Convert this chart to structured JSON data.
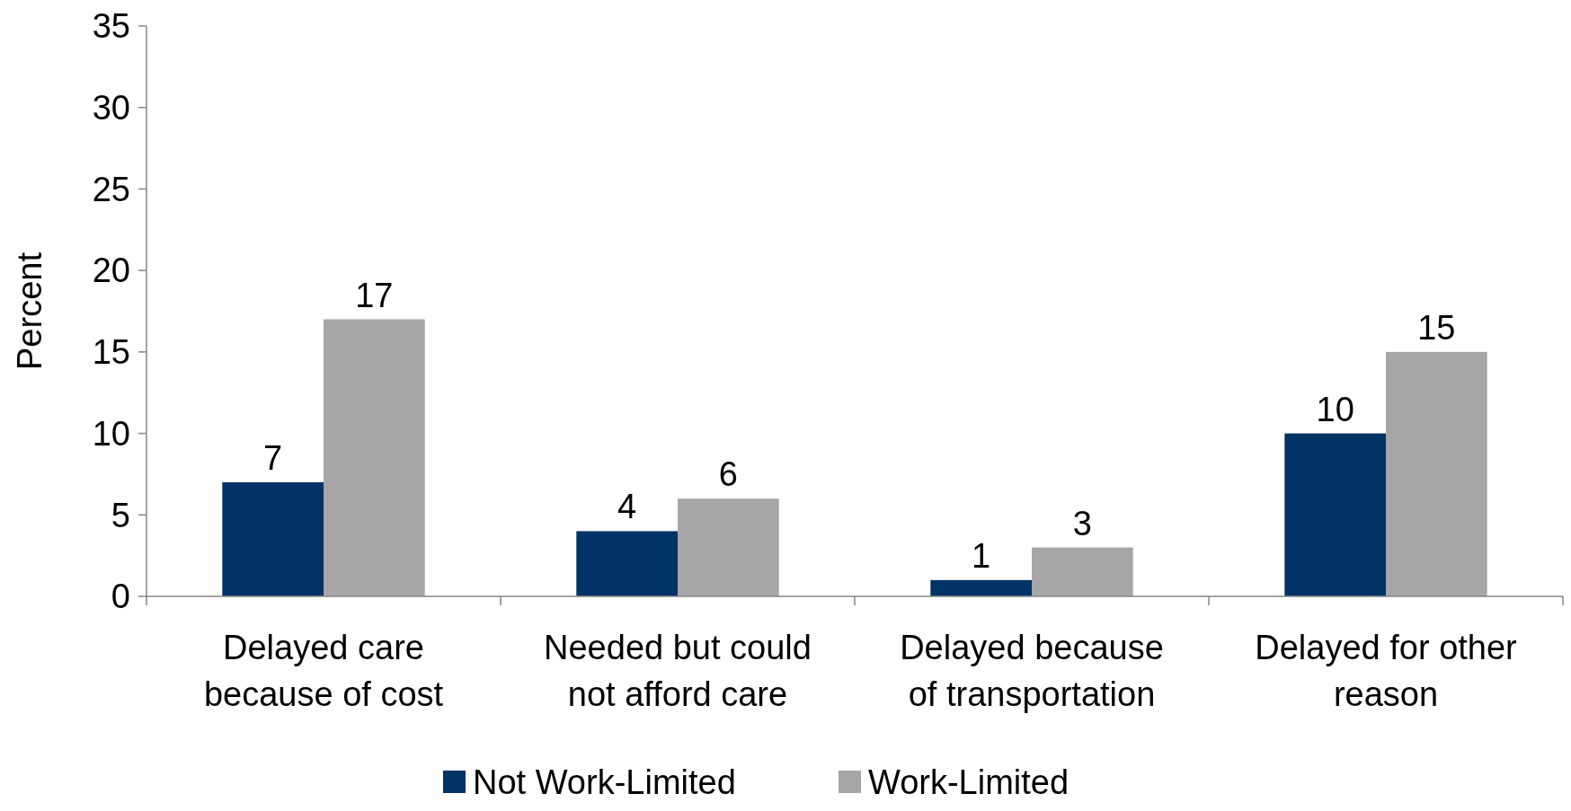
{
  "chart_data": {
    "type": "bar",
    "ylabel": "Percent",
    "categories": [
      "Delayed care because of cost",
      "Needed but could not afford care",
      "Delayed because of transportation",
      "Delayed for other reason"
    ],
    "series": [
      {
        "name": "Not Work-Limited",
        "color": "#003366",
        "values": [
          7,
          4,
          1,
          10
        ]
      },
      {
        "name": "Work-Limited",
        "color": "#a6a6a6",
        "values": [
          17,
          6,
          3,
          15
        ]
      }
    ],
    "ylim": [
      0,
      35
    ],
    "yticks": [
      0,
      5,
      10,
      15,
      20,
      25,
      30,
      35
    ],
    "data_labels": true,
    "legend": "bottom",
    "grid": false
  }
}
